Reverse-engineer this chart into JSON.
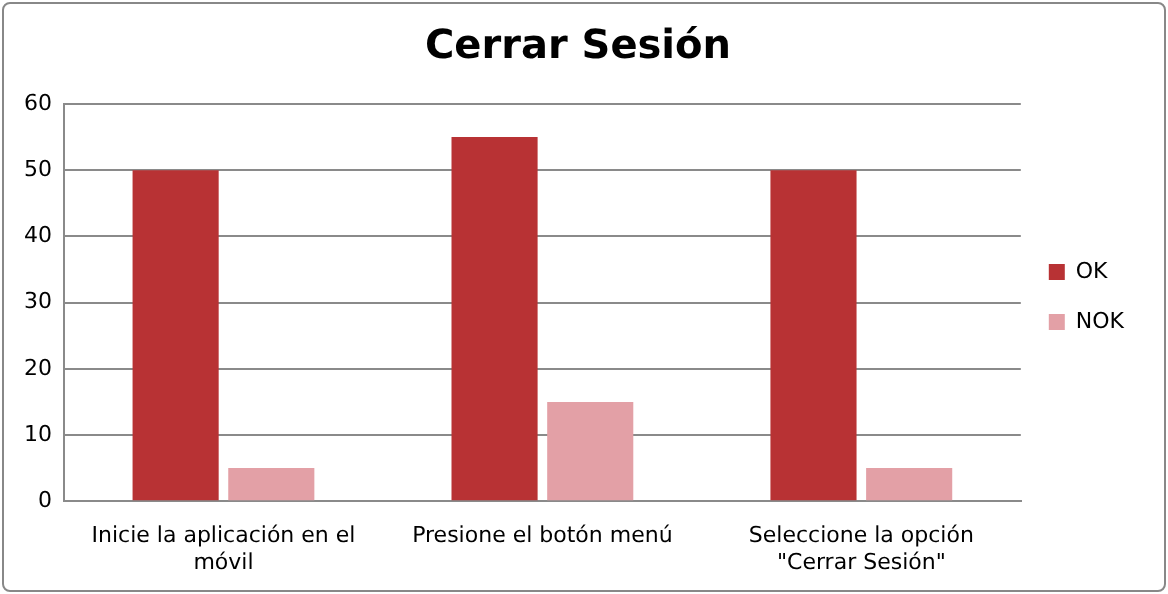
{
  "chart_data": {
    "type": "bar",
    "title": "Cerrar Sesión",
    "categories": [
      "Inicie la aplicación en el móvil",
      "Presione el botón menú",
      "Seleccione la opción \"Cerrar Sesión\""
    ],
    "series": [
      {
        "name": "OK",
        "color": "#b83234",
        "values": [
          50,
          55,
          50
        ]
      },
      {
        "name": "NOK",
        "color": "#e3a0a6",
        "values": [
          5,
          15,
          5
        ]
      }
    ],
    "ylim": [
      0,
      60
    ],
    "yticks": [
      0,
      10,
      20,
      30,
      40,
      50,
      60
    ],
    "grid": "y",
    "legend": "right"
  }
}
